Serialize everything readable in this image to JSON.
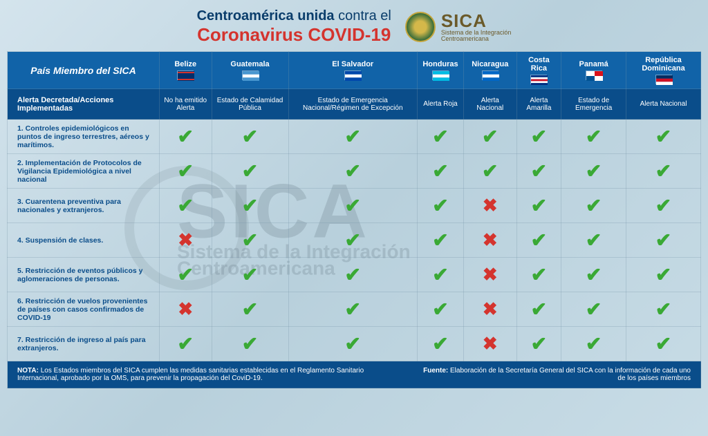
{
  "header": {
    "title_line1_pre": "Centroamérica unida",
    "title_line1_post": " contra el",
    "title_line2": "Coronavirus COVID-19",
    "sica_name": "SICA",
    "sica_sub1": "Sistema de la Integración",
    "sica_sub2": "Centroamericana"
  },
  "colors": {
    "header_blue": "#1163a8",
    "dark_blue": "#0a4d8a",
    "red": "#d4342e",
    "green": "#3aa935",
    "text_navy": "#0a3d6b"
  },
  "table": {
    "member_label": "País Miembro del SICA",
    "alert_label": "Alerta Decretada/Acciones Implementadas",
    "countries": [
      {
        "name": "Belize",
        "alert": "No ha emitido Alerta",
        "flag_colors": [
          "#002f6c",
          "#d4342e"
        ]
      },
      {
        "name": "Guatemala",
        "alert": "Estado de Calamidad Pública",
        "flag_colors": [
          "#4997d0",
          "#ffffff",
          "#4997d0"
        ]
      },
      {
        "name": "El Salvador",
        "alert": "Estado de Emergencia Nacional/Régimen de Excepción",
        "flag_colors": [
          "#0047ab",
          "#ffffff",
          "#0047ab"
        ]
      },
      {
        "name": "Honduras",
        "alert": "Alerta Roja",
        "flag_colors": [
          "#00bce4",
          "#ffffff",
          "#00bce4"
        ]
      },
      {
        "name": "Nicaragua",
        "alert": "Alerta Nacional",
        "flag_colors": [
          "#0067c6",
          "#ffffff",
          "#0067c6"
        ]
      },
      {
        "name": "Costa Rica",
        "alert": "Alerta Amarilla",
        "flag_colors": [
          "#002b7f",
          "#ffffff",
          "#ce1126",
          "#ffffff",
          "#002b7f"
        ]
      },
      {
        "name": "Panamá",
        "alert": "Estado de Emergencia",
        "flag_colors": [
          "#ffffff",
          "#da121a",
          "#005293",
          "#ffffff"
        ]
      },
      {
        "name": "República Dominicana",
        "alert": "Alerta Nacional",
        "flag_colors": [
          "#002d62",
          "#ce1126",
          "#ffffff"
        ]
      }
    ],
    "actions": [
      {
        "label": "1. Controles epidemiológicos en puntos de ingreso terrestres, aéreos y marítimos.",
        "values": [
          true,
          true,
          true,
          true,
          true,
          true,
          true,
          true
        ]
      },
      {
        "label": "2. Implementación de Protocolos de Vigilancia Epidemiológica a nivel nacional",
        "values": [
          true,
          true,
          true,
          true,
          true,
          true,
          true,
          true
        ]
      },
      {
        "label": "3. Cuarentena preventiva para nacionales y extranjeros.",
        "values": [
          true,
          true,
          true,
          true,
          false,
          true,
          true,
          true
        ]
      },
      {
        "label": "4. Suspensión de clases.",
        "values": [
          false,
          true,
          true,
          true,
          false,
          true,
          true,
          true
        ]
      },
      {
        "label": "5. Restricción de eventos públicos y aglomeraciones de personas.",
        "values": [
          true,
          true,
          true,
          true,
          false,
          true,
          true,
          true
        ]
      },
      {
        "label": "6. Restricción de vuelos provenientes de países con casos confirmados de COVID-19",
        "values": [
          false,
          true,
          true,
          true,
          false,
          true,
          true,
          true
        ]
      },
      {
        "label": "7. Restricción de ingreso al país para extranjeros.",
        "values": [
          true,
          true,
          true,
          true,
          false,
          true,
          true,
          true
        ]
      }
    ]
  },
  "footer": {
    "note_label": "NOTA:",
    "note_text": " Los Estados miembros del SICA cumplen las medidas sanitarias establecidas en el Reglamento Sanitario Internacional, aprobado por la OMS, para prevenir la propagación del CoviD-19.",
    "source_label": "Fuente:",
    "source_text": " Elaboración de la Secretaría General del SICA con la información de cada uno de los países miembros"
  },
  "watermark": {
    "big": "SICA",
    "sub": "Sistema de la Integración Centroamericana"
  }
}
